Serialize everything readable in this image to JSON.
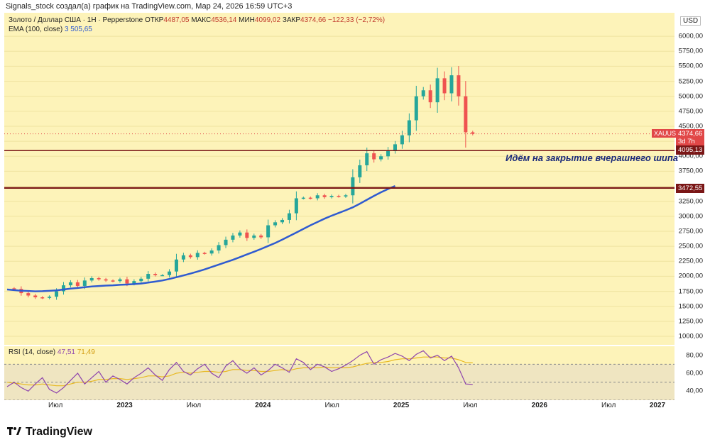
{
  "header": {
    "author_line": "Signals_stock создал(а) график на TradingView.com, Мар 24, 2026 16:59 UTC+3"
  },
  "legend": {
    "instrument": "Золото / Доллар США · 1H · Pepperstone",
    "open_label": "ОТКР",
    "open": "4487,05",
    "high_label": "МАКС",
    "high": "4536,14",
    "low_label": "МИН",
    "low": "4099,02",
    "close_label": "ЗАКР",
    "close": "4374,66",
    "change": "−122,33 (−2,72%)",
    "ema_label": "EMA (100, close)",
    "ema_value": "3 505,65"
  },
  "rsi_legend": {
    "label": "RSI (14, close)",
    "value1": "47,51",
    "value2": "71,49"
  },
  "currency": "USD",
  "symbol_tag": "XAUUSD",
  "annotation": "Идём на закрытие вчерашнего шипа",
  "price_tags": {
    "current": "4374,66",
    "countdown": "3d 7h",
    "level1": "4095,13",
    "level2": "3472,55"
  },
  "brand": {
    "name": "TradingView"
  },
  "colors": {
    "background": "#fdf3b9",
    "up": "#26a69a",
    "down": "#ef5350",
    "ema": "#2f5bd0",
    "level": "#7a1616",
    "rsi": "#8e44ad",
    "rsi_ma": "#e8b923"
  },
  "chart_data": {
    "type": "line",
    "title": "Золото / Доллар США · 1H · Pepperstone",
    "xlabel": "",
    "ylabel": "USD",
    "ylim": [
      1000,
      6250
    ],
    "x_tick_labels": [
      "Июл",
      "2023",
      "Июл",
      "2024",
      "Июл",
      "2025",
      "Июл",
      "2026",
      "Июл",
      "2027"
    ],
    "y_tick_labels": [
      "6000,00",
      "5750,00",
      "5500,00",
      "5250,00",
      "5000,00",
      "4750,00",
      "4500,00",
      "4250,00",
      "4000,00",
      "3750,00",
      "3500,00",
      "3250,00",
      "3000,00",
      "2750,00",
      "2500,00",
      "2250,00",
      "2000,00",
      "1750,00",
      "1500,00",
      "1250,00",
      "1000,00"
    ],
    "y_ticks": [
      6000,
      5750,
      5500,
      5250,
      5000,
      4750,
      4500,
      4250,
      4000,
      3750,
      3500,
      3250,
      3000,
      2750,
      2500,
      2250,
      2000,
      1750,
      1500,
      1250,
      1000
    ],
    "x_positions": [
      0.0,
      0.05,
      0.1,
      0.15,
      0.2,
      0.25,
      0.3,
      0.35,
      0.4,
      0.45,
      0.5,
      0.55,
      0.6,
      0.65,
      0.7,
      0.75,
      0.8,
      0.85,
      0.9,
      0.95,
      1.0,
      1.05,
      1.1,
      1.15,
      1.2,
      1.25,
      1.3,
      1.35,
      1.4,
      1.45,
      1.5,
      1.55,
      1.6,
      1.65,
      1.7,
      1.75,
      1.8,
      1.85,
      1.9,
      1.95,
      2.0,
      2.05,
      2.1,
      2.15,
      2.2,
      2.25,
      2.3,
      2.35,
      2.4,
      2.45,
      2.5,
      2.55,
      2.6,
      2.65,
      2.7,
      2.75,
      2.8,
      2.85,
      2.9,
      2.95,
      3.0,
      3.05,
      3.1,
      3.15,
      3.2,
      3.25,
      3.3,
      3.35,
      3.4,
      3.45,
      3.5,
      3.55,
      3.6,
      3.62,
      3.65,
      3.67,
      3.7,
      3.72,
      3.74,
      3.76,
      3.77,
      3.78,
      3.8
    ],
    "series": [
      {
        "name": "XAUUSD",
        "values": [
          1800,
          1790,
          1720,
          1680,
          1650,
          1640,
          1660,
          1750,
          1850,
          1900,
          1840,
          1930,
          1970,
          1950,
          1930,
          1920,
          1950,
          1880,
          1920,
          1960,
          2040,
          2020,
          2020,
          2080,
          2280,
          2350,
          2320,
          2390,
          2380,
          2430,
          2520,
          2610,
          2680,
          2730,
          2640,
          2680,
          2650,
          2850,
          2900,
          2940,
          3050,
          3300,
          3310,
          3300,
          3350,
          3320,
          3340,
          3330,
          3350,
          3650,
          3850,
          4050,
          3950,
          4000,
          4100,
          4200,
          4350,
          4600,
          5000,
          5100,
          4900,
          5300,
          5050,
          5350,
          5000,
          4400,
          4374.66,
          4374.66,
          4374.66,
          4374.66,
          4374.66,
          4374.66,
          4374.66,
          4374.66,
          4374.66,
          4374.66,
          4374.66,
          4374.66,
          4374.66,
          4374.66,
          4374.66,
          4374.66,
          4374.66
        ]
      },
      {
        "name": "EMA (100, close)",
        "values": [
          1780,
          1770,
          1760,
          1755,
          1750,
          1752,
          1758,
          1765,
          1780,
          1795,
          1805,
          1818,
          1830,
          1838,
          1845,
          1850,
          1858,
          1863,
          1870,
          1880,
          1895,
          1912,
          1930,
          1955,
          1985,
          2015,
          2045,
          2080,
          2115,
          2155,
          2195,
          2235,
          2275,
          2320,
          2365,
          2410,
          2455,
          2505,
          2555,
          2610,
          2670,
          2730,
          2790,
          2850,
          2905,
          2960,
          3010,
          3055,
          3100,
          3150,
          3210,
          3275,
          3340,
          3400,
          3455,
          3505.65,
          3505.65,
          3505.65,
          3505.65,
          3505.65,
          3505.65,
          3505.65,
          3505.65,
          3505.65,
          3505.65,
          3505.65,
          3505.65,
          3505.65,
          3505.65,
          3505.65,
          3505.65,
          3505.65,
          3505.65,
          3505.65,
          3505.65,
          3505.65,
          3505.65,
          3505.65,
          3505.65,
          3505.65,
          3505.65,
          3505.65,
          3505.65
        ]
      }
    ],
    "levels": [
      4095.13,
      3472.55
    ],
    "rsi": {
      "ylim": [
        30,
        90
      ],
      "y_ticks": [
        80,
        60,
        40
      ],
      "y_tick_labels": [
        "80,00",
        "60,00",
        "40,00"
      ],
      "bands": [
        70,
        50,
        30
      ],
      "values": [
        45,
        50,
        44,
        40,
        48,
        55,
        42,
        38,
        44,
        52,
        60,
        48,
        55,
        62,
        50,
        57,
        53,
        48,
        55,
        60,
        66,
        58,
        52,
        64,
        72,
        62,
        58,
        65,
        70,
        60,
        55,
        68,
        74,
        65,
        60,
        66,
        58,
        63,
        70,
        66,
        61,
        76,
        72,
        64,
        70,
        67,
        62,
        65,
        69,
        74,
        80,
        84,
        70,
        75,
        78,
        82,
        79,
        74,
        81,
        85,
        77,
        80,
        74,
        79,
        66,
        48,
        47.51
      ],
      "ma_values": [
        50,
        49,
        48,
        47,
        47,
        48,
        47,
        46,
        46,
        48,
        50,
        50,
        51,
        53,
        53,
        54,
        54,
        53,
        54,
        55,
        57,
        57,
        56,
        57,
        60,
        61,
        60,
        61,
        62,
        62,
        61,
        62,
        64,
        64,
        63,
        63,
        62,
        62,
        63,
        64,
        63,
        65,
        66,
        66,
        66,
        67,
        66,
        66,
        66,
        67,
        69,
        71,
        72,
        72,
        73,
        75,
        76,
        76,
        77,
        78,
        78,
        78,
        77,
        77,
        75,
        72,
        71.49
      ]
    }
  }
}
